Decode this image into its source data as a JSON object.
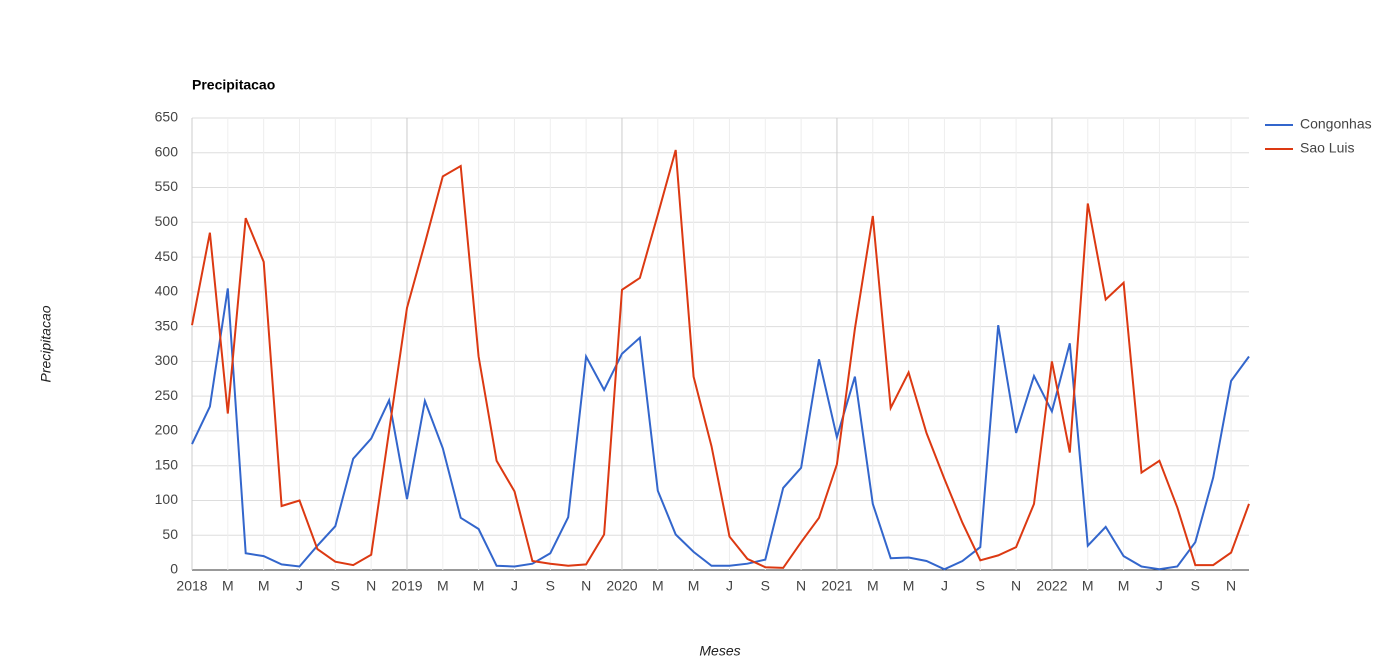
{
  "chart_data": {
    "type": "line",
    "title": "Precipitacao",
    "x_label": "Meses",
    "y_label": "Precipitacao",
    "categories": [
      "2018",
      null,
      "M",
      null,
      "M",
      null,
      "J",
      null,
      "S",
      null,
      "N",
      null,
      "2019",
      null,
      "M",
      null,
      "M",
      null,
      "J",
      null,
      "S",
      null,
      "N",
      null,
      "2020",
      null,
      "M",
      null,
      "M",
      null,
      "J",
      null,
      "S",
      null,
      "N",
      null,
      "2021",
      null,
      "M",
      null,
      "M",
      null,
      "J",
      null,
      "S",
      null,
      "N",
      null,
      "2022",
      null,
      "M",
      null,
      "M",
      null,
      "J",
      null,
      "S",
      null,
      "N",
      null
    ],
    "series": [
      {
        "name": "Congonhas",
        "color": "#3366cc",
        "values": [
          181,
          235,
          405,
          24,
          20,
          8,
          5,
          35,
          63,
          160,
          189,
          244,
          102,
          243,
          175,
          75,
          59,
          6,
          5,
          9,
          24,
          76,
          307,
          259,
          311,
          334,
          114,
          51,
          26,
          6,
          6,
          9,
          15,
          118,
          147,
          303,
          191,
          278,
          95,
          17,
          18,
          13,
          1,
          13,
          33,
          352,
          197,
          279,
          228,
          326,
          35,
          62,
          20,
          5,
          1,
          5,
          40,
          133,
          272,
          307
        ]
      },
      {
        "name": "Sao Luis",
        "color": "#dc3912",
        "values": [
          352,
          485,
          225,
          506,
          443,
          92,
          100,
          30,
          12,
          7,
          22,
          200,
          377,
          470,
          566,
          581,
          307,
          157,
          113,
          13,
          9,
          6,
          8,
          51,
          403,
          420,
          511,
          604,
          278,
          178,
          48,
          16,
          4,
          3,
          40,
          75,
          152,
          347,
          509,
          233,
          284,
          197,
          131,
          68,
          14,
          21,
          33,
          95,
          300,
          169,
          527,
          389,
          413,
          140,
          157,
          90,
          7,
          7,
          25,
          95
        ]
      }
    ],
    "ylim": [
      0,
      650
    ],
    "yticks": [
      0,
      50,
      100,
      150,
      200,
      250,
      300,
      350,
      400,
      450,
      500,
      550,
      600,
      650
    ],
    "grid": true,
    "legend": "right"
  }
}
